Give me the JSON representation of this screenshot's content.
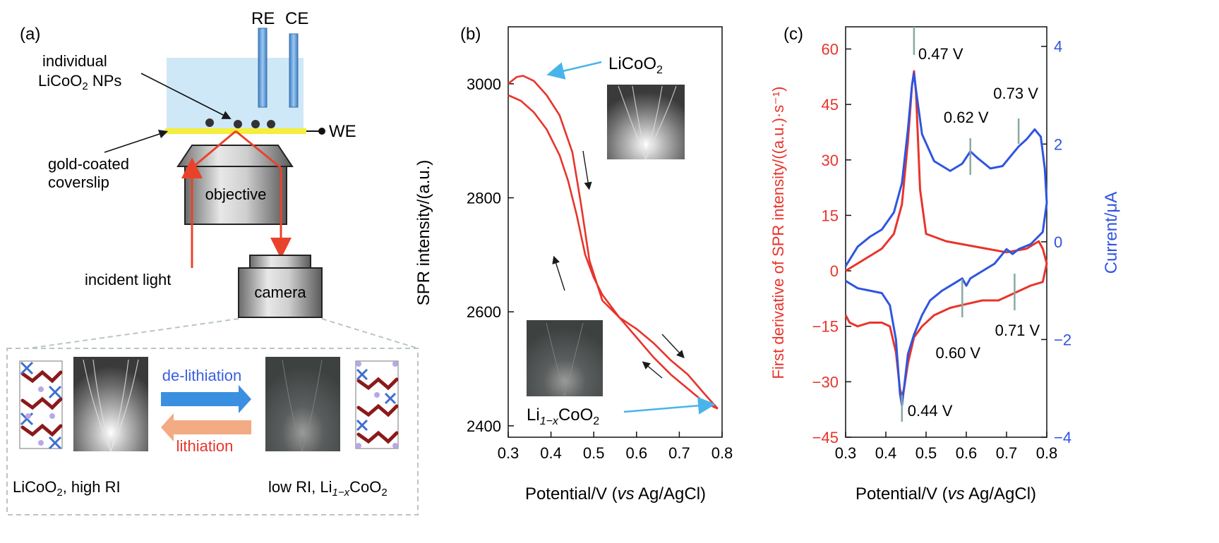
{
  "panel_a": {
    "label": "(a)",
    "re_label": "RE",
    "ce_label": "CE",
    "we_label": "WE",
    "np_label_line1": "individual",
    "np_label_line2_pre": "LiCoO",
    "np_label_line2_sub": "2",
    "np_label_line2_post": " NPs",
    "gold_label_line1": "gold-coated",
    "gold_label_line2": "coverslip",
    "objective_label": "objective",
    "incident_label": "incident light",
    "camera_label": "camera",
    "delithiation_label": "de-lithiation",
    "lithiation_label": "lithiation",
    "left_state_pre": "LiCoO",
    "left_state_sub": "2",
    "left_state_post": ", high RI",
    "right_state_pre": "low RI, Li",
    "right_state_sub": "1−x",
    "right_state_mid": "CoO",
    "right_state_sub2": "2",
    "colors": {
      "solution": "#cfe8f7",
      "gold": "#f5ee3a",
      "electrode": "#6aa6dd",
      "light": "#e8432a",
      "delith": "#3b8fe0",
      "lith": "#f2ab82",
      "atom_red": "#8b1a1a",
      "atom_blue": "#3e6fcf",
      "atom_purple": "#b9a8e6"
    }
  },
  "chart_data": [
    {
      "type": "line",
      "panel_label": "(b)",
      "xlabel_pre": "Potential/V (",
      "xlabel_italic": "vs",
      "xlabel_post": " Ag/AgCl)",
      "ylabel": "SPR intensity/(a.u.)",
      "xlim": [
        0.3,
        0.8
      ],
      "ylim": [
        2380,
        3100
      ],
      "xticks": [
        "0.3",
        "0.4",
        "0.5",
        "0.6",
        "0.7",
        "0.8"
      ],
      "yticks": [
        "2400",
        "2600",
        "2800",
        "3000"
      ],
      "annot_top_pre": "LiCoO",
      "annot_top_sub": "2",
      "annot_bottom_pre": "Li",
      "annot_bottom_sub": "1−x",
      "annot_bottom_mid": "CoO",
      "annot_bottom_sub2": "2",
      "grid": false,
      "color": "#e8342b",
      "series": [
        {
          "x": [
            0.3,
            0.32,
            0.335,
            0.36,
            0.39,
            0.42,
            0.45,
            0.47,
            0.49,
            0.52,
            0.56,
            0.6,
            0.64,
            0.68,
            0.72,
            0.76,
            0.79
          ],
          "y": [
            3000,
            3012,
            3014,
            3005,
            2980,
            2945,
            2880,
            2790,
            2690,
            2620,
            2590,
            2570,
            2545,
            2515,
            2490,
            2455,
            2430
          ]
        },
        {
          "x": [
            0.79,
            0.76,
            0.72,
            0.68,
            0.64,
            0.6,
            0.56,
            0.52,
            0.5,
            0.48,
            0.46,
            0.44,
            0.42,
            0.39,
            0.36,
            0.33,
            0.3
          ],
          "y": [
            2430,
            2440,
            2465,
            2490,
            2520,
            2555,
            2590,
            2630,
            2660,
            2700,
            2770,
            2830,
            2875,
            2920,
            2950,
            2970,
            2980
          ]
        }
      ]
    },
    {
      "type": "line",
      "panel_label": "(c)",
      "xlabel_pre": "Potential/V (",
      "xlabel_italic": "vs",
      "xlabel_post": " Ag/AgCl)",
      "ylabel_left": "First derivative of SPR intensity/((a.u.)·s⁻¹)",
      "ylabel_right": "Current/μA",
      "xlim": [
        0.3,
        0.8
      ],
      "ylim_left": [
        -45,
        66
      ],
      "ylim_right": [
        -4,
        4.4
      ],
      "xticks": [
        "0.3",
        "0.4",
        "0.5",
        "0.6",
        "0.7",
        "0.8"
      ],
      "yticks_left": [
        "−45",
        "−30",
        "−15",
        "0",
        "15",
        "30",
        "45",
        "60"
      ],
      "yticks_right": [
        "−4",
        "−2",
        "0",
        "2",
        "4"
      ],
      "left_color": "#e8342b",
      "right_color": "#2f55e0",
      "grid": false,
      "peaks": [
        {
          "label": "0.47 V",
          "x": 0.47
        },
        {
          "label": "0.62 V",
          "x": 0.61
        },
        {
          "label": "0.73 V",
          "x": 0.73
        },
        {
          "label": "0.60 V",
          "x": 0.59
        },
        {
          "label": "0.71 V",
          "x": 0.72
        },
        {
          "label": "0.44 V",
          "x": 0.44
        }
      ],
      "series": [
        {
          "name": "derivative",
          "axis": "left",
          "x": [
            0.3,
            0.33,
            0.36,
            0.39,
            0.42,
            0.44,
            0.455,
            0.465,
            0.47,
            0.475,
            0.485,
            0.5,
            0.55,
            0.6,
            0.65,
            0.7,
            0.75,
            0.78,
            0.79,
            0.8,
            0.79,
            0.76,
            0.72,
            0.68,
            0.64,
            0.6,
            0.56,
            0.52,
            0.49,
            0.47,
            0.455,
            0.445,
            0.44,
            0.435,
            0.425,
            0.41,
            0.39,
            0.36,
            0.33,
            0.31,
            0.3
          ],
          "y": [
            0,
            2,
            4,
            6,
            10,
            18,
            35,
            50,
            54,
            48,
            22,
            10,
            8,
            7,
            6,
            5,
            6,
            8,
            6,
            2,
            -3,
            -4,
            -6,
            -8,
            -8,
            -9,
            -10,
            -12,
            -15,
            -18,
            -25,
            -32,
            -34,
            -32,
            -22,
            -15,
            -14,
            -14,
            -15,
            -14,
            -12
          ]
        },
        {
          "name": "current",
          "axis": "right",
          "x": [
            0.3,
            0.33,
            0.36,
            0.39,
            0.42,
            0.44,
            0.455,
            0.465,
            0.47,
            0.475,
            0.49,
            0.52,
            0.56,
            0.59,
            0.61,
            0.63,
            0.66,
            0.69,
            0.71,
            0.73,
            0.75,
            0.77,
            0.785,
            0.795,
            0.8,
            0.79,
            0.76,
            0.73,
            0.715,
            0.7,
            0.67,
            0.64,
            0.61,
            0.6,
            0.59,
            0.57,
            0.54,
            0.51,
            0.49,
            0.47,
            0.455,
            0.445,
            0.44,
            0.435,
            0.425,
            0.41,
            0.39,
            0.36,
            0.33,
            0.3
          ],
          "y": [
            -0.5,
            -0.1,
            0.1,
            0.25,
            0.6,
            1.2,
            2.3,
            3.2,
            3.45,
            3.1,
            2.2,
            1.65,
            1.45,
            1.6,
            1.85,
            1.7,
            1.5,
            1.55,
            1.75,
            1.95,
            2.1,
            2.3,
            2.15,
            1.5,
            0.8,
            0.2,
            -0.05,
            -0.15,
            -0.25,
            -0.15,
            -0.45,
            -0.6,
            -0.75,
            -0.9,
            -0.75,
            -0.85,
            -1.0,
            -1.2,
            -1.5,
            -1.9,
            -2.3,
            -3.0,
            -3.35,
            -3.1,
            -2.0,
            -1.3,
            -1.05,
            -1.0,
            -0.95,
            -0.8
          ]
        }
      ]
    }
  ]
}
